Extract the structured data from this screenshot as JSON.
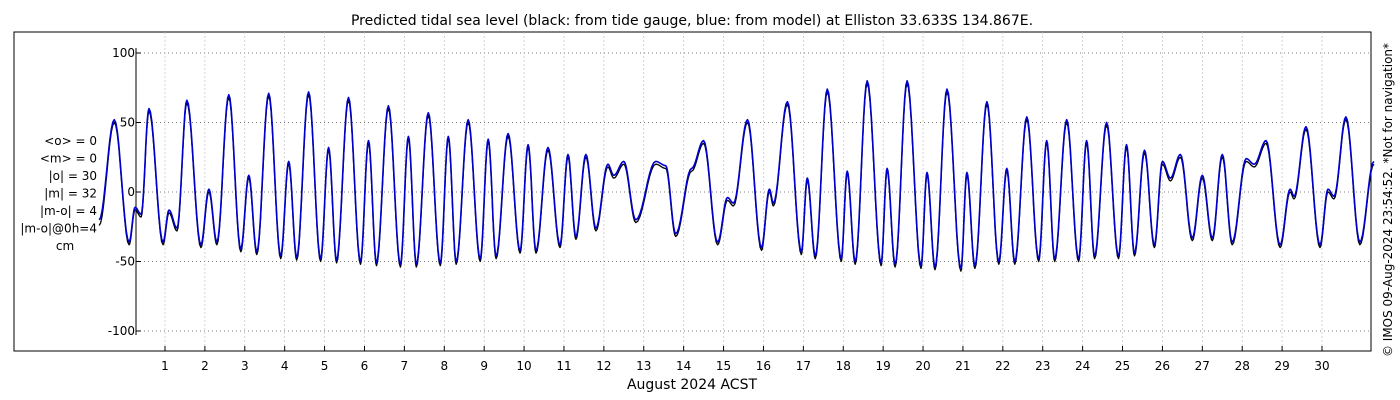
{
  "chart_data": {
    "type": "line",
    "title": "Predicted tidal sea level (black: from tide gauge, blue: from model) at Elliston 33.633S 134.867E.",
    "xlabel": "August 2024 ACST",
    "ylabel": "",
    "x_unit": "day of month",
    "xlim": [
      -0.8,
      31.5
    ],
    "ylim": [
      -105,
      105
    ],
    "yticks": [
      -100,
      -50,
      0,
      50,
      100
    ],
    "xticks": [
      1,
      2,
      3,
      4,
      5,
      6,
      7,
      8,
      9,
      10,
      11,
      12,
      13,
      14,
      15,
      16,
      17,
      18,
      19,
      20,
      21,
      22,
      23,
      24,
      25,
      26,
      27,
      28,
      29,
      30
    ],
    "grid": "dotted",
    "stats": [
      "<o> = 0",
      "<m> = 0",
      "|o| = 30",
      "|m| = 32",
      "|m-o| = 4",
      "|m-o|@0h=4",
      "cm"
    ],
    "credit": "© IMOS 09-Aug-2024 23:54:52. *Not for navigation*",
    "series": [
      {
        "color": "#000000",
        "extrema": [
          [
            -0.65,
            -24
          ],
          [
            -0.27,
            50
          ],
          [
            0.1,
            -38
          ],
          [
            0.25,
            -13
          ],
          [
            0.4,
            -18
          ],
          [
            0.6,
            58
          ],
          [
            0.95,
            -38
          ],
          [
            1.1,
            -15
          ],
          [
            1.3,
            -28
          ],
          [
            1.55,
            64
          ],
          [
            1.9,
            -40
          ],
          [
            2.1,
            0
          ],
          [
            2.3,
            -38
          ],
          [
            2.6,
            68
          ],
          [
            2.9,
            -43
          ],
          [
            3.1,
            10
          ],
          [
            3.3,
            -45
          ],
          [
            3.6,
            69
          ],
          [
            3.9,
            -48
          ],
          [
            4.1,
            20
          ],
          [
            4.3,
            -49
          ],
          [
            4.6,
            70
          ],
          [
            4.9,
            -50
          ],
          [
            5.1,
            30
          ],
          [
            5.3,
            -51
          ],
          [
            5.6,
            66
          ],
          [
            5.9,
            -52
          ],
          [
            6.1,
            35
          ],
          [
            6.3,
            -53
          ],
          [
            6.6,
            60
          ],
          [
            6.9,
            -54
          ],
          [
            7.1,
            38
          ],
          [
            7.3,
            -54
          ],
          [
            7.6,
            55
          ],
          [
            7.9,
            -53
          ],
          [
            8.1,
            38
          ],
          [
            8.3,
            -52
          ],
          [
            8.6,
            50
          ],
          [
            8.9,
            -50
          ],
          [
            9.1,
            36
          ],
          [
            9.3,
            -48
          ],
          [
            9.6,
            40
          ],
          [
            9.9,
            -44
          ],
          [
            10.1,
            32
          ],
          [
            10.3,
            -44
          ],
          [
            10.6,
            30
          ],
          [
            10.9,
            -40
          ],
          [
            11.1,
            25
          ],
          [
            11.3,
            -34
          ],
          [
            11.55,
            25
          ],
          [
            11.8,
            -28
          ],
          [
            12.1,
            18
          ],
          [
            12.25,
            10
          ],
          [
            12.5,
            20
          ],
          [
            12.8,
            -22
          ],
          [
            13.3,
            20
          ],
          [
            13.55,
            17
          ],
          [
            13.8,
            -32
          ],
          [
            14.2,
            15
          ],
          [
            14.5,
            35
          ],
          [
            14.85,
            -38
          ],
          [
            15.1,
            -6
          ],
          [
            15.25,
            -10
          ],
          [
            15.6,
            50
          ],
          [
            15.95,
            -42
          ],
          [
            16.15,
            0
          ],
          [
            16.25,
            -10
          ],
          [
            16.6,
            63
          ],
          [
            16.95,
            -45
          ],
          [
            17.1,
            8
          ],
          [
            17.3,
            -48
          ],
          [
            17.6,
            72
          ],
          [
            17.95,
            -50
          ],
          [
            18.1,
            13
          ],
          [
            18.3,
            -52
          ],
          [
            18.6,
            78
          ],
          [
            18.95,
            -53
          ],
          [
            19.1,
            15
          ],
          [
            19.3,
            -54
          ],
          [
            19.6,
            78
          ],
          [
            19.95,
            -55
          ],
          [
            20.1,
            12
          ],
          [
            20.3,
            -56
          ],
          [
            20.6,
            72
          ],
          [
            20.95,
            -57
          ],
          [
            21.1,
            12
          ],
          [
            21.3,
            -55
          ],
          [
            21.6,
            63
          ],
          [
            21.9,
            -52
          ],
          [
            22.1,
            15
          ],
          [
            22.3,
            -52
          ],
          [
            22.6,
            52
          ],
          [
            22.9,
            -50
          ],
          [
            23.1,
            35
          ],
          [
            23.3,
            -50
          ],
          [
            23.6,
            50
          ],
          [
            23.9,
            -50
          ],
          [
            24.1,
            35
          ],
          [
            24.3,
            -48
          ],
          [
            24.6,
            48
          ],
          [
            24.9,
            -48
          ],
          [
            25.1,
            32
          ],
          [
            25.3,
            -46
          ],
          [
            25.55,
            28
          ],
          [
            25.8,
            -40
          ],
          [
            26.0,
            20
          ],
          [
            26.2,
            8
          ],
          [
            26.45,
            25
          ],
          [
            26.75,
            -35
          ],
          [
            27.0,
            10
          ],
          [
            27.25,
            -35
          ],
          [
            27.5,
            25
          ],
          [
            27.75,
            -38
          ],
          [
            28.1,
            22
          ],
          [
            28.3,
            18
          ],
          [
            28.6,
            35
          ],
          [
            28.95,
            -40
          ],
          [
            29.2,
            0
          ],
          [
            29.3,
            -5
          ],
          [
            29.6,
            45
          ],
          [
            29.95,
            -40
          ],
          [
            30.15,
            0
          ],
          [
            30.3,
            -5
          ],
          [
            30.6,
            52
          ],
          [
            30.95,
            -38
          ],
          [
            31.3,
            20
          ]
        ]
      },
      {
        "color": "#0000cc",
        "extrema": [
          [
            -0.65,
            -20
          ],
          [
            -0.27,
            52
          ],
          [
            0.1,
            -36
          ],
          [
            0.25,
            -11
          ],
          [
            0.4,
            -16
          ],
          [
            0.6,
            60
          ],
          [
            0.95,
            -36
          ],
          [
            1.1,
            -13
          ],
          [
            1.3,
            -26
          ],
          [
            1.55,
            66
          ],
          [
            1.9,
            -38
          ],
          [
            2.1,
            2
          ],
          [
            2.3,
            -36
          ],
          [
            2.6,
            70
          ],
          [
            2.9,
            -41
          ],
          [
            3.1,
            12
          ],
          [
            3.3,
            -43
          ],
          [
            3.6,
            71
          ],
          [
            3.9,
            -46
          ],
          [
            4.1,
            22
          ],
          [
            4.3,
            -47
          ],
          [
            4.6,
            72
          ],
          [
            4.9,
            -48
          ],
          [
            5.1,
            32
          ],
          [
            5.3,
            -49
          ],
          [
            5.6,
            68
          ],
          [
            5.9,
            -50
          ],
          [
            6.1,
            37
          ],
          [
            6.3,
            -51
          ],
          [
            6.6,
            62
          ],
          [
            6.9,
            -52
          ],
          [
            7.1,
            40
          ],
          [
            7.3,
            -52
          ],
          [
            7.6,
            57
          ],
          [
            7.9,
            -51
          ],
          [
            8.1,
            40
          ],
          [
            8.3,
            -50
          ],
          [
            8.6,
            52
          ],
          [
            8.9,
            -48
          ],
          [
            9.1,
            38
          ],
          [
            9.3,
            -46
          ],
          [
            9.6,
            42
          ],
          [
            9.9,
            -42
          ],
          [
            10.1,
            34
          ],
          [
            10.3,
            -42
          ],
          [
            10.6,
            32
          ],
          [
            10.9,
            -38
          ],
          [
            11.1,
            27
          ],
          [
            11.3,
            -32
          ],
          [
            11.55,
            27
          ],
          [
            11.8,
            -26
          ],
          [
            12.1,
            20
          ],
          [
            12.25,
            12
          ],
          [
            12.5,
            22
          ],
          [
            12.8,
            -20
          ],
          [
            13.3,
            22
          ],
          [
            13.55,
            19
          ],
          [
            13.8,
            -30
          ],
          [
            14.2,
            17
          ],
          [
            14.5,
            37
          ],
          [
            14.85,
            -36
          ],
          [
            15.1,
            -4
          ],
          [
            15.25,
            -8
          ],
          [
            15.6,
            52
          ],
          [
            15.95,
            -40
          ],
          [
            16.15,
            2
          ],
          [
            16.25,
            -8
          ],
          [
            16.6,
            65
          ],
          [
            16.95,
            -43
          ],
          [
            17.1,
            10
          ],
          [
            17.3,
            -46
          ],
          [
            17.6,
            74
          ],
          [
            17.95,
            -48
          ],
          [
            18.1,
            15
          ],
          [
            18.3,
            -50
          ],
          [
            18.6,
            80
          ],
          [
            18.95,
            -51
          ],
          [
            19.1,
            17
          ],
          [
            19.3,
            -52
          ],
          [
            19.6,
            80
          ],
          [
            19.95,
            -53
          ],
          [
            20.1,
            14
          ],
          [
            20.3,
            -54
          ],
          [
            20.6,
            74
          ],
          [
            20.95,
            -55
          ],
          [
            21.1,
            14
          ],
          [
            21.3,
            -53
          ],
          [
            21.6,
            65
          ],
          [
            21.9,
            -50
          ],
          [
            22.1,
            17
          ],
          [
            22.3,
            -50
          ],
          [
            22.6,
            54
          ],
          [
            22.9,
            -48
          ],
          [
            23.1,
            37
          ],
          [
            23.3,
            -48
          ],
          [
            23.6,
            52
          ],
          [
            23.9,
            -48
          ],
          [
            24.1,
            37
          ],
          [
            24.3,
            -46
          ],
          [
            24.6,
            50
          ],
          [
            24.9,
            -46
          ],
          [
            25.1,
            34
          ],
          [
            25.3,
            -44
          ],
          [
            25.55,
            30
          ],
          [
            25.8,
            -38
          ],
          [
            26.0,
            22
          ],
          [
            26.2,
            10
          ],
          [
            26.45,
            27
          ],
          [
            26.75,
            -33
          ],
          [
            27.0,
            12
          ],
          [
            27.25,
            -33
          ],
          [
            27.5,
            27
          ],
          [
            27.75,
            -36
          ],
          [
            28.1,
            24
          ],
          [
            28.3,
            20
          ],
          [
            28.6,
            37
          ],
          [
            28.95,
            -38
          ],
          [
            29.2,
            2
          ],
          [
            29.3,
            -3
          ],
          [
            29.6,
            47
          ],
          [
            29.95,
            -38
          ],
          [
            30.15,
            2
          ],
          [
            30.3,
            -3
          ],
          [
            30.6,
            54
          ],
          [
            30.95,
            -36
          ],
          [
            31.3,
            22
          ]
        ]
      }
    ]
  }
}
